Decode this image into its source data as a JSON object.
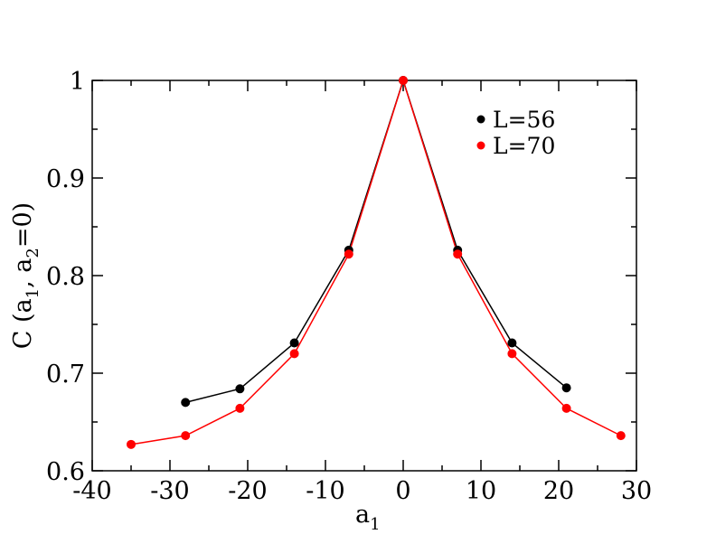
{
  "chart_data": {
    "type": "line",
    "xlabel": "a",
    "xlabel_sub": "1",
    "ylabel": {
      "prefix": "C (a",
      "sub1": "1",
      "mid": ", a",
      "sub2": "2",
      "suffix": "=0)"
    },
    "xlim": [
      -40,
      30
    ],
    "ylim": [
      0.6,
      1.0
    ],
    "xticks": [
      -40,
      -30,
      -20,
      -10,
      0,
      10,
      20,
      30
    ],
    "xtick_labels": [
      "-40",
      "-30",
      "-20",
      "-10",
      "0",
      "10",
      "20",
      "30"
    ],
    "yticks": [
      0.6,
      0.7,
      0.8,
      0.9,
      1.0
    ],
    "ytick_labels": [
      "0.6",
      "0.7",
      "0.8",
      "0.9",
      "1"
    ],
    "grid": false,
    "legend_position": "top-right",
    "series": [
      {
        "name": "L=56",
        "color": "#000000",
        "x": [
          -28,
          -21,
          -14,
          -7,
          0,
          7,
          14,
          21
        ],
        "y": [
          0.67,
          0.684,
          0.731,
          0.826,
          1.0,
          0.826,
          0.731,
          0.685
        ]
      },
      {
        "name": "L=70",
        "color": "#ff0000",
        "x": [
          -35,
          -28,
          -21,
          -14,
          -7,
          0,
          7,
          14,
          21,
          28
        ],
        "y": [
          0.627,
          0.636,
          0.664,
          0.72,
          0.822,
          1.0,
          0.822,
          0.72,
          0.664,
          0.636
        ]
      }
    ]
  }
}
